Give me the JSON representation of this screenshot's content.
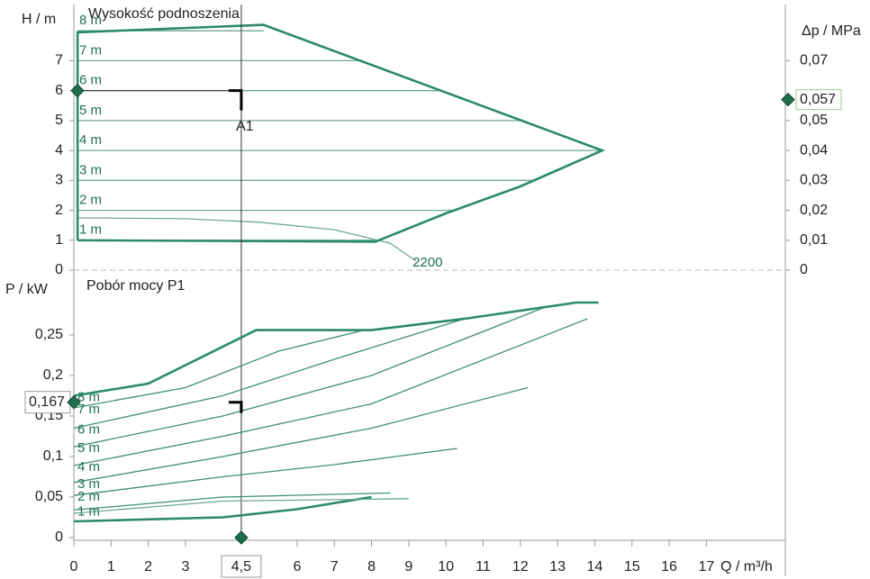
{
  "chart_data": [
    {
      "type": "line",
      "title": "Wysokość podnoszenia",
      "y_label": "H / m",
      "y2_label": "Δp / MPa",
      "xlim": [
        0,
        19
      ],
      "ylim": [
        0,
        9
      ],
      "yticks": [
        0,
        1,
        2,
        3,
        4,
        5,
        6,
        7
      ],
      "y2lim": [
        0,
        0.09
      ],
      "y2ticks": [
        0,
        {
          "value": 0.01,
          "label": "0,01"
        },
        {
          "value": 0.02,
          "label": "0,02"
        },
        {
          "value": 0.03,
          "label": "0,03"
        },
        {
          "value": 0.04,
          "label": "0,04"
        },
        {
          "value": 0.05,
          "label": "0,05"
        },
        {
          "value": 0.07,
          "label": "0,07"
        }
      ],
      "color": "#2b8a6b",
      "envelope": {
        "x": [
          0.1,
          0.1,
          5.1,
          14.2,
          12,
          10,
          8.1,
          0.1
        ],
        "values": [
          1,
          7.95,
          8.2,
          4,
          2.8,
          1.9,
          0.95,
          1
        ]
      },
      "series": [
        {
          "name": "8 m",
          "color": "#6fa79a",
          "x": [
            0.1,
            5.1
          ],
          "values": [
            8,
            8
          ]
        },
        {
          "name": "7 m",
          "color": "#6fa79a",
          "x": [
            0.1,
            7.7
          ],
          "values": [
            7,
            7
          ]
        },
        {
          "name": "6 m",
          "color": "#6fa79a",
          "x": [
            0.1,
            9.9
          ],
          "values": [
            6,
            6
          ]
        },
        {
          "name": "5 m",
          "color": "#6fa79a",
          "x": [
            0.1,
            12.0
          ],
          "values": [
            5,
            5
          ]
        },
        {
          "name": "4 m",
          "color": "#6fa79a",
          "x": [
            0.1,
            14.2
          ],
          "values": [
            4,
            4
          ]
        },
        {
          "name": "3 m",
          "color": "#6fa79a",
          "x": [
            0.1,
            12.4
          ],
          "values": [
            3,
            3
          ]
        },
        {
          "name": "2 m",
          "color": "#6fa79a",
          "x": [
            0.1,
            10.3
          ],
          "values": [
            2,
            2
          ]
        },
        {
          "name": "1 m",
          "color": "#6fa79a",
          "x": [
            0.1,
            8.1
          ],
          "values": [
            1,
            1
          ]
        },
        {
          "name": "2200",
          "color": "#6fa79a",
          "x": [
            0.1,
            3,
            5,
            7,
            8.5,
            9.2
          ],
          "values": [
            1.75,
            1.72,
            1.6,
            1.35,
            0.9,
            0.3
          ]
        }
      ],
      "operating_point": {
        "label": "A1",
        "x": 4.5,
        "y": 6,
        "y2": {
          "value": 0.057,
          "label": "0,057"
        }
      }
    },
    {
      "type": "line",
      "title": "Pobór mocy P1",
      "x_label": "Q / m³/h",
      "y_label": "P / kW",
      "xlim": [
        0,
        19
      ],
      "xticks": [
        0,
        1,
        2,
        3,
        6,
        7,
        8,
        9,
        10,
        11,
        12,
        13,
        14,
        15,
        16,
        17
      ],
      "ylim": [
        0,
        0.32
      ],
      "yticks": [
        0,
        {
          "value": 0.05,
          "label": "0,05"
        },
        {
          "value": 0.1,
          "label": "0,1"
        },
        {
          "value": 0.15,
          "label": "0,15"
        },
        {
          "value": 0.2,
          "label": "0,2"
        },
        {
          "value": 0.25,
          "label": "0,25"
        }
      ],
      "color": "#2b8a6b",
      "envelope": {
        "x": [
          0,
          2,
          4.9,
          8,
          10.5,
          13.5,
          14.1
        ],
        "values": [
          0.175,
          0.19,
          0.256,
          0.256,
          0.27,
          0.29,
          0.29
        ]
      },
      "lower_curve": {
        "x": [
          0,
          4,
          6,
          8
        ],
        "values": [
          0.02,
          0.025,
          0.035,
          0.05
        ]
      },
      "other_curve": {
        "x": [
          0,
          4,
          9
        ],
        "values": [
          0.03,
          0.045,
          0.048
        ]
      },
      "series": [
        {
          "name": "8 m",
          "color": "#3d8f78",
          "x": [
            0,
            2,
            4,
            4.9
          ],
          "values": [
            0.175,
            0.19,
            0.235,
            0.256
          ]
        },
        {
          "name": "7 m",
          "color": "#3d8f78",
          "x": [
            0,
            3,
            5.5,
            7.8
          ],
          "values": [
            0.16,
            0.185,
            0.23,
            0.256
          ]
        },
        {
          "name": "6 m",
          "color": "#3d8f78",
          "x": [
            0,
            4,
            7,
            10.5
          ],
          "values": [
            0.135,
            0.175,
            0.22,
            0.27
          ]
        },
        {
          "name": "5 m",
          "color": "#3d8f78",
          "x": [
            0,
            4,
            8,
            12.7
          ],
          "values": [
            0.112,
            0.15,
            0.2,
            0.285
          ]
        },
        {
          "name": "4 m",
          "color": "#3d8f78",
          "x": [
            0,
            4,
            8,
            13.8
          ],
          "values": [
            0.089,
            0.125,
            0.165,
            0.27
          ]
        },
        {
          "name": "3 m",
          "color": "#3d8f78",
          "x": [
            0,
            4,
            8,
            12.2
          ],
          "values": [
            0.068,
            0.1,
            0.135,
            0.185
          ]
        },
        {
          "name": "2 m",
          "color": "#3d8f78",
          "x": [
            0,
            4,
            7,
            10.3
          ],
          "values": [
            0.052,
            0.075,
            0.09,
            0.11
          ]
        },
        {
          "name": "1 m",
          "color": "#3d8f78",
          "x": [
            0,
            4,
            8.5
          ],
          "values": [
            0.034,
            0.05,
            0.055
          ]
        }
      ],
      "operating_point": {
        "x": {
          "value": 4.5,
          "label": "4,5"
        },
        "y": {
          "value": 0.167,
          "label": "0,167"
        }
      }
    }
  ]
}
